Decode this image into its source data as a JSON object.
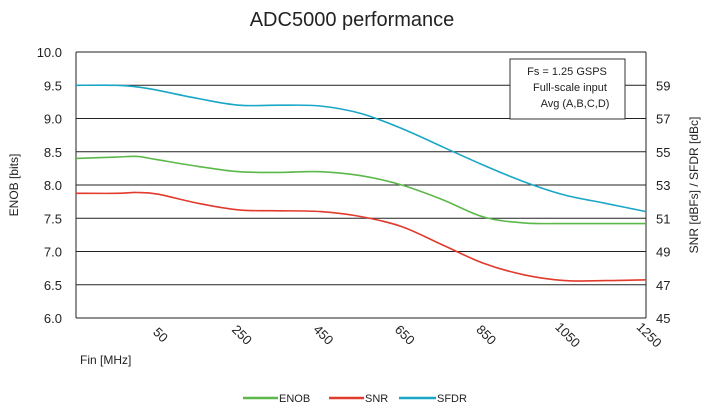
{
  "chart_data": {
    "type": "line",
    "title": "ADC5000 performance",
    "xlabel": "Fin [MHz]",
    "ylabel_left": "ENOB [bits]",
    "ylabel_right": "SNR [dBFs] / SFDR [dBc]",
    "x_tick_labels": [
      "50",
      "250",
      "450",
      "650",
      "850",
      "1050",
      "1250"
    ],
    "left_ticks": [
      "6.0",
      "6.5",
      "7.0",
      "7.5",
      "8.0",
      "8.5",
      "9.0",
      "9.5",
      "10.0"
    ],
    "right_ticks": [
      "45",
      "47",
      "49",
      "51",
      "53",
      "55",
      "57",
      "59"
    ],
    "ylim_left": [
      6.0,
      10.0
    ],
    "ylim_right": [
      45,
      61
    ],
    "xlim": [
      -150,
      1250
    ],
    "grid": "horizontal",
    "legend_position": "bottom",
    "annotation": [
      "Fs = 1.25 GSPS",
      "Full-scale input",
      "Avg (A,B,C,D)"
    ],
    "series": [
      {
        "name": "ENOB",
        "axis": "left",
        "color": "#5cb84a",
        "x": [
          -150,
          -50,
          0,
          50,
          150,
          250,
          350,
          450,
          550,
          650,
          750,
          850,
          950,
          1050,
          1150,
          1250
        ],
        "y": [
          8.4,
          8.42,
          8.43,
          8.38,
          8.28,
          8.2,
          8.19,
          8.2,
          8.14,
          8.0,
          7.78,
          7.52,
          7.43,
          7.42,
          7.42,
          7.42
        ]
      },
      {
        "name": "SNR",
        "axis": "right",
        "color": "#e23a2c",
        "x": [
          -150,
          -50,
          0,
          50,
          150,
          250,
          350,
          450,
          550,
          650,
          750,
          850,
          950,
          1050,
          1150,
          1250
        ],
        "y": [
          52.5,
          52.5,
          52.55,
          52.45,
          51.9,
          51.5,
          51.45,
          51.4,
          51.1,
          50.5,
          49.4,
          48.3,
          47.6,
          47.25,
          47.25,
          47.3
        ]
      },
      {
        "name": "SFDR",
        "axis": "right",
        "color": "#1aa6c6",
        "x": [
          -150,
          -50,
          0,
          50,
          150,
          250,
          350,
          450,
          550,
          650,
          750,
          850,
          950,
          1050,
          1150,
          1250
        ],
        "y": [
          59.0,
          59.0,
          58.9,
          58.7,
          58.2,
          57.8,
          57.8,
          57.75,
          57.3,
          56.4,
          55.3,
          54.2,
          53.2,
          52.4,
          51.9,
          51.4
        ]
      }
    ]
  }
}
